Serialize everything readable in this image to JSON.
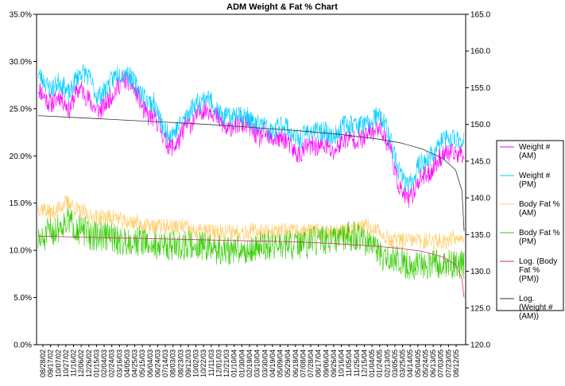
{
  "chart_data": {
    "type": "line",
    "title": "ADM Weight & Fat % Chart",
    "xlabel": "",
    "ylabel": "",
    "y_left": {
      "ylim": [
        0.0,
        35.0
      ],
      "ticks": [
        "0.0%",
        "5.0%",
        "10.0%",
        "15.0%",
        "20.0%",
        "25.0%",
        "30.0%",
        "35.0%"
      ]
    },
    "y_right": {
      "ylim": [
        120.0,
        165.0
      ],
      "ticks": [
        "120.0",
        "125.0",
        "130.0",
        "135.0",
        "140.0",
        "145.0",
        "150.0",
        "155.0",
        "160.0",
        "165.0"
      ]
    },
    "x_tick_labels": [
      "08/28/02",
      "09/17/02",
      "10/07/02",
      "10/27/02",
      "11/16/02",
      "12/06/02",
      "12/26/02",
      "01/15/03",
      "02/04/03",
      "02/24/03",
      "03/16/03",
      "04/05/03",
      "04/25/03",
      "05/15/03",
      "06/04/03",
      "06/24/03",
      "07/14/03",
      "08/03/03",
      "08/23/03",
      "09/12/03",
      "10/02/03",
      "10/22/03",
      "11/11/03",
      "12/01/03",
      "12/21/03",
      "01/10/04",
      "01/30/04",
      "02/19/04",
      "03/10/04",
      "03/30/04",
      "04/19/04",
      "05/09/04",
      "05/29/04",
      "06/18/04",
      "07/08/04",
      "07/28/04",
      "08/17/04",
      "09/06/04",
      "09/26/04",
      "10/16/04",
      "11/05/04",
      "11/25/04",
      "12/15/04",
      "01/04/05",
      "01/24/05",
      "02/13/05",
      "03/05/05",
      "03/25/05",
      "04/14/05",
      "05/04/05",
      "05/24/05",
      "06/13/05",
      "07/03/05",
      "07/23/05",
      "08/12/05"
    ],
    "grid": false,
    "legend_position": "right",
    "series": [
      {
        "name": "Weight # (AM)",
        "axis": "right",
        "color": "#ff00ff",
        "kind": "daily",
        "values": [
          155,
          154,
          153,
          153,
          154,
          153,
          152,
          154,
          155,
          154,
          153,
          152,
          152,
          153,
          154,
          155,
          156,
          156,
          155,
          154,
          152,
          151,
          151,
          150,
          148,
          147,
          147,
          148,
          150,
          150,
          151,
          152,
          152,
          152,
          151,
          150,
          149,
          150,
          150,
          150,
          150,
          149,
          148,
          149,
          148,
          148,
          148,
          148,
          147,
          146,
          146,
          147,
          147,
          147,
          147,
          147,
          146,
          147,
          148,
          148,
          148,
          148,
          148,
          149,
          149,
          150,
          148,
          147,
          143,
          141,
          140,
          140,
          142,
          143,
          143,
          144,
          145,
          146,
          146,
          146,
          146,
          146
        ]
      },
      {
        "name": "Weight # (PM)",
        "axis": "right",
        "color": "#00ccff",
        "kind": "daily",
        "values": [
          157,
          156,
          155,
          155,
          156,
          155,
          154,
          156,
          157,
          157,
          156,
          154,
          154,
          155,
          156,
          157,
          157,
          157,
          156,
          155,
          154,
          153,
          153,
          151,
          149,
          149,
          149,
          150,
          151,
          152,
          153,
          153,
          154,
          153,
          152,
          151,
          151,
          151,
          152,
          151,
          151,
          150,
          150,
          150,
          149,
          149,
          150,
          150,
          149,
          148,
          148,
          149,
          149,
          149,
          149,
          149,
          148,
          149,
          150,
          150,
          150,
          150,
          150,
          150,
          151,
          151,
          150,
          148,
          145,
          143,
          142,
          142,
          144,
          145,
          145,
          146,
          147,
          148,
          148,
          148,
          148,
          148
        ]
      },
      {
        "name": "Body Fat % (AM)",
        "axis": "left",
        "color": "#ffcc66",
        "kind": "daily",
        "values": [
          14.5,
          14.5,
          14,
          14,
          14.5,
          15,
          15,
          14.5,
          14,
          14,
          13.5,
          13.5,
          13.5,
          13.5,
          13.5,
          13.5,
          13,
          13,
          13,
          13,
          12.5,
          12.5,
          12.5,
          12.5,
          12.5,
          12.5,
          12.5,
          12.5,
          12.5,
          12,
          12,
          12,
          12,
          12,
          12,
          12,
          12,
          12,
          12,
          12,
          12,
          12,
          12,
          12,
          12,
          12,
          12,
          12,
          12,
          12,
          12,
          12,
          12,
          12,
          12,
          12,
          12,
          12,
          12,
          12,
          12,
          12.5,
          12.5,
          12.5,
          12,
          12,
          11.5,
          11,
          11,
          11,
          11,
          11,
          11,
          11,
          11,
          11,
          11,
          11,
          11,
          11.5,
          11.5,
          11.5
        ]
      },
      {
        "name": "Body Fat % (PM)",
        "axis": "left",
        "color": "#33cc00",
        "kind": "daily",
        "values": [
          11,
          11,
          12,
          12,
          12.5,
          13,
          13,
          12.5,
          12,
          12,
          11.5,
          11.5,
          11.5,
          11.5,
          11.5,
          11,
          11,
          11,
          11,
          11,
          11,
          10.5,
          10.5,
          10.5,
          10.5,
          10.5,
          10.5,
          10.5,
          10.5,
          10.5,
          10.5,
          10.5,
          10.5,
          10,
          10,
          10,
          10,
          10,
          10,
          10,
          10,
          10,
          10.5,
          10.5,
          10.5,
          10.5,
          10.5,
          10.5,
          10.5,
          10.5,
          10.5,
          10.5,
          11,
          11,
          11,
          11,
          11,
          11,
          11.5,
          11.5,
          11.5,
          11.5,
          11,
          10.5,
          10,
          9.5,
          9,
          9,
          9,
          9,
          8.5,
          8.5,
          8.5,
          8.5,
          8.5,
          8.5,
          8.5,
          8.5,
          8.5,
          8.5,
          8.5,
          8.5
        ]
      },
      {
        "name": "Log. (Body Fat % (PM))",
        "axis": "left",
        "color": "#cc3366",
        "kind": "trend",
        "x": [
          0.0,
          0.1,
          0.2,
          0.3,
          0.4,
          0.5,
          0.6,
          0.7,
          0.8,
          0.85,
          0.9,
          0.95,
          0.98,
          0.995,
          1.0
        ],
        "values": [
          11.5,
          11.4,
          11.3,
          11.2,
          11.1,
          11.0,
          10.9,
          10.7,
          10.4,
          10.2,
          9.9,
          9.3,
          8.5,
          7.0,
          5.0
        ]
      },
      {
        "name": "Log. (Weight # (AM))",
        "axis": "right",
        "color": "#333333",
        "kind": "trend",
        "x": [
          0.0,
          0.1,
          0.2,
          0.3,
          0.4,
          0.5,
          0.6,
          0.7,
          0.8,
          0.85,
          0.9,
          0.95,
          0.98,
          0.995,
          1.0
        ],
        "values": [
          151.2,
          150.9,
          150.6,
          150.3,
          150.0,
          149.6,
          149.2,
          148.7,
          148.0,
          147.5,
          146.7,
          145.4,
          143.8,
          141.0,
          135.5
        ]
      }
    ]
  },
  "legend": [
    {
      "label_lines": [
        "Weight #",
        "(AM)"
      ],
      "color": "#ff00ff"
    },
    {
      "label_lines": [
        "Weight #",
        "(PM)"
      ],
      "color": "#00ccff"
    },
    {
      "label_lines": [
        "Body Fat %",
        "(AM)"
      ],
      "color": "#ffcc66"
    },
    {
      "label_lines": [
        "Body Fat %",
        "(PM)"
      ],
      "color": "#33cc00"
    },
    {
      "label_lines": [
        "Log. (Body",
        "Fat %",
        "(PM))"
      ],
      "color": "#cc3366"
    },
    {
      "label_lines": [
        "Log.",
        "(Weight #",
        "(AM))"
      ],
      "color": "#333333"
    }
  ]
}
